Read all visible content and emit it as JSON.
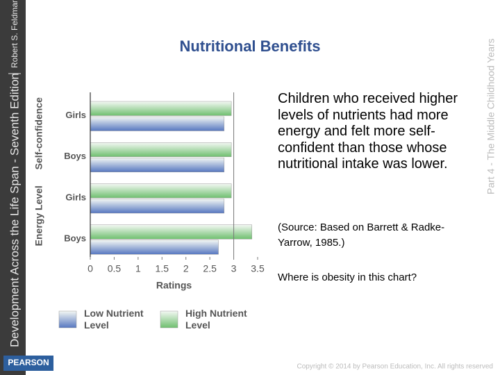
{
  "slide": {
    "title": "Nutritional Benefits",
    "body": "Children who received higher levels of nutrients had more energy and felt more self-confident than those whose nutritional intake was lower.",
    "source": "(Source: Based on Barrett & Radke-Yarrow, 1985.)",
    "question": "Where is obesity in this chart?",
    "side_title": "Development Across the Life Span - Seventh Edition",
    "author": "Robert S. Feldman",
    "part": "Part 4 - The Middle Childhood Years",
    "logo": "PEARSON",
    "copyright": "Copyright © 2014 by Pearson Education, Inc. All rights reserved"
  },
  "chart_data": {
    "type": "hbar",
    "groups": [
      {
        "name": "Self-confidence",
        "categories": [
          "Girls",
          "Boys"
        ]
      },
      {
        "name": "Energy Level",
        "categories": [
          "Girls",
          "Boys"
        ]
      }
    ],
    "series": [
      {
        "name": "High Nutrient Level",
        "color": "#6fbf6f",
        "values": [
          2.95,
          2.95,
          2.95,
          3.38
        ]
      },
      {
        "name": "Low Nutrient Level",
        "color": "#5677c0",
        "values": [
          2.8,
          2.8,
          2.8,
          2.68
        ]
      }
    ],
    "legend_order": [
      "Low Nutrient Level",
      "High Nutrient Level"
    ],
    "xlabel": "Ratings",
    "xlim": [
      0,
      3.5
    ],
    "xticks": [
      0,
      0.5,
      1,
      1.5,
      2,
      2.5,
      3,
      3.5
    ],
    "reference_line": 3
  }
}
